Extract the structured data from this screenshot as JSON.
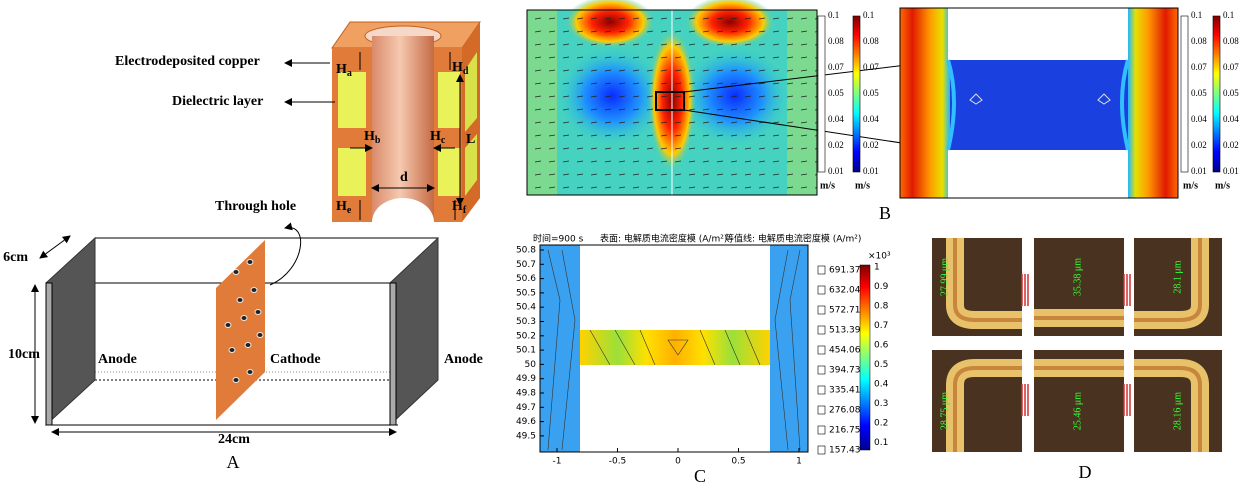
{
  "panel_a": {
    "label": "A",
    "annotations": {
      "copper": "Electrodeposited copper",
      "dielectric": "Dielectric layer",
      "through_hole": "Through hole"
    },
    "dims": [
      {
        "symbol": "H",
        "sub": "a"
      },
      {
        "symbol": "H",
        "sub": "d"
      },
      {
        "symbol": "H",
        "sub": "b"
      },
      {
        "symbol": "H",
        "sub": "c"
      },
      {
        "symbol": "H",
        "sub": "e"
      },
      {
        "symbol": "H",
        "sub": "f"
      }
    ],
    "length": "L",
    "diameter": "d",
    "box": {
      "depth": "6cm",
      "height": "10cm",
      "width": "24cm",
      "anode_left": "Anode",
      "cathode": "Cathode",
      "anode_right": "Anode"
    }
  },
  "panel_b": {
    "label": "B",
    "colorbars": [
      {
        "ticks": [
          "0.1",
          "0.08",
          "0.07",
          "0.05",
          "0.04",
          "0.02",
          "0.01"
        ],
        "unit": "m/s"
      },
      {
        "ticks": [
          "0.1",
          "0.08",
          "0.07",
          "0.05",
          "0.04",
          "0.02",
          "0.01"
        ],
        "unit": "m/s"
      },
      {
        "ticks": [
          "0.1",
          "0.08",
          "0.07",
          "0.05",
          "0.04",
          "0.02",
          "0.01"
        ],
        "unit": "m/s"
      },
      {
        "ticks": [
          "0.1",
          "0.08",
          "0.07",
          "0.05",
          "0.04",
          "0.02",
          "0.01"
        ],
        "unit": "m/s"
      }
    ]
  },
  "panel_c": {
    "label": "C",
    "title": [
      "时间=900 s",
      "表面: 电解质电流密度模 (A/m²)",
      "等值线: 电解质电流密度模 (A/m²)"
    ],
    "yticks": [
      "50.8",
      "50.7",
      "50.6",
      "50.5",
      "50.4",
      "50.3",
      "50.2",
      "50.1",
      "50",
      "49.9",
      "49.8",
      "49.7",
      "49.6",
      "49.5"
    ],
    "xticks": [
      "-1",
      "-0.5",
      "0",
      "0.5",
      "1"
    ],
    "contour_levels": [
      "691.37",
      "632.04",
      "572.71",
      "513.39",
      "454.06",
      "394.73",
      "335.41",
      "276.08",
      "216.75",
      "157.43"
    ],
    "colorbar_multiplier": "×10³",
    "colorbar_ticks": [
      "1",
      "0.9",
      "0.8",
      "0.7",
      "0.6",
      "0.5",
      "0.4",
      "0.3",
      "0.2",
      "0.1"
    ]
  },
  "panel_d": {
    "label": "D",
    "measurements": [
      "27.99 μm",
      "35.38 μm",
      "28.1 μm",
      "28.75 μm",
      "25.46 μm",
      "28.16 μm"
    ]
  }
}
